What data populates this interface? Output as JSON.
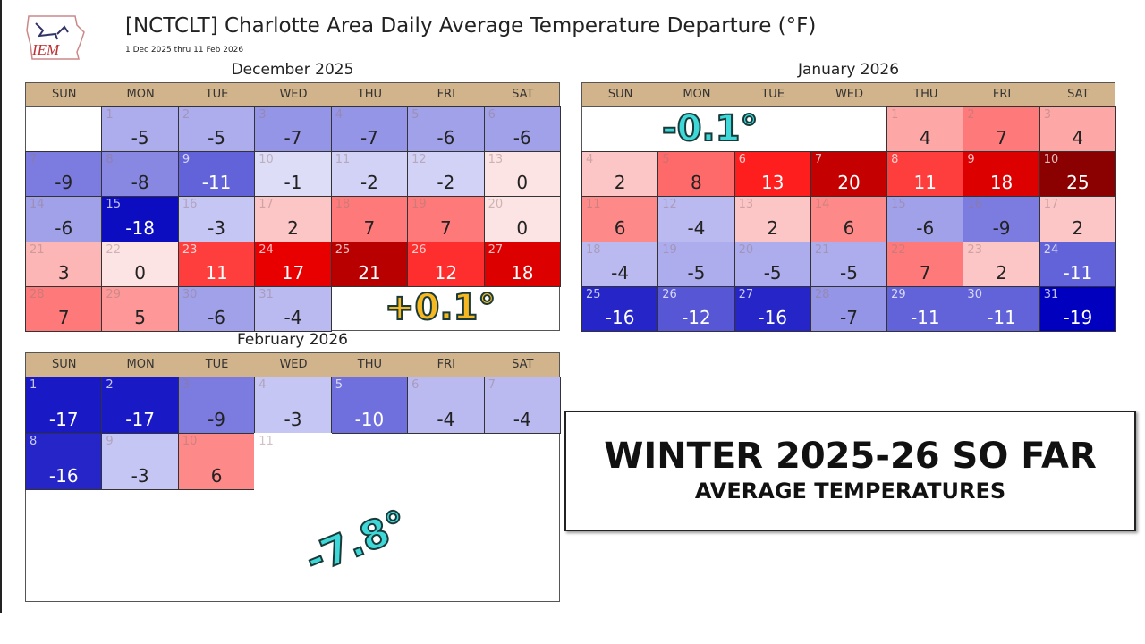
{
  "header": {
    "logo_text": "IEM",
    "title": "[NCTCLT] Charlotte Area Daily Average Temperature Departure (°F)",
    "subtitle": "1 Dec 2025 thru 11 Feb 2026"
  },
  "chart_data": {
    "type": "heatmap",
    "title": "[NCTCLT] Charlotte Area Daily Average Temperature Departure (°F)",
    "subtitle": "1 Dec 2025 thru 11 Feb 2026",
    "weekdays": [
      "SUN",
      "MON",
      "TUE",
      "WED",
      "THU",
      "FRI",
      "SAT"
    ],
    "colors": {
      "cold": "#0000c8",
      "neutral": "#fde4e4",
      "warm": "#ff0000",
      "hot": "#8b0000",
      "header": "#d2b48c"
    },
    "months": [
      {
        "name": "December 2025",
        "first_weekday": 1,
        "days": 31,
        "values": [
          -5,
          -5,
          -7,
          -7,
          -6,
          -6,
          -9,
          -8,
          -11,
          -1,
          -2,
          -2,
          0,
          -6,
          -18,
          -3,
          2,
          7,
          7,
          0,
          3,
          0,
          11,
          17,
          21,
          12,
          18,
          7,
          5,
          -6,
          -4
        ]
      },
      {
        "name": "January 2026",
        "first_weekday": 4,
        "days": 31,
        "values": [
          4,
          7,
          4,
          2,
          8,
          13,
          20,
          11,
          18,
          25,
          6,
          -4,
          2,
          6,
          -6,
          -9,
          2,
          -4,
          -5,
          -5,
          -5,
          7,
          2,
          -11,
          -16,
          -12,
          -16,
          -7,
          -11,
          -11,
          -19
        ]
      },
      {
        "name": "February 2026",
        "first_weekday": 0,
        "days": 11,
        "values": [
          -17,
          -17,
          -9,
          -3,
          -10,
          -4,
          -4,
          -16,
          -3,
          6,
          null
        ]
      }
    ]
  },
  "annotations": {
    "december": "+0.1°",
    "january": "-0.1°",
    "february": "-7.8°"
  },
  "banner": {
    "line1": "WINTER 2025-26 SO FAR",
    "line2": "AVERAGE TEMPERATURES"
  }
}
